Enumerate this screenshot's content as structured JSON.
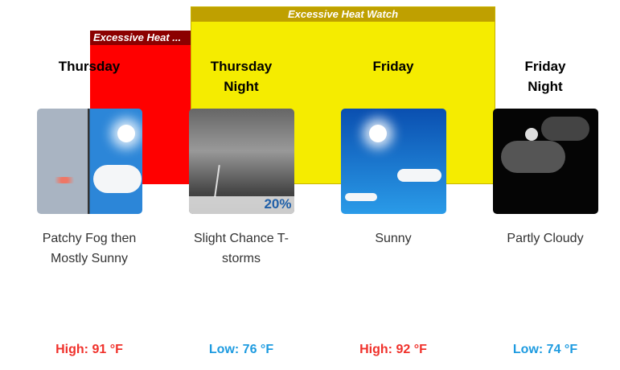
{
  "hazards": [
    {
      "label": "Excessive Heat ...",
      "color": "#ff0000"
    },
    {
      "label": "Excessive Heat Watch",
      "color": "#f5ec00"
    }
  ],
  "periods": [
    {
      "name": "Thursday",
      "icon": "patchy-fog-then-mostly-sunny-icon",
      "pop": "",
      "description": "Patchy Fog then Mostly Sunny",
      "temp": "High: 91 °F",
      "type": "high"
    },
    {
      "name": "Thursday Night",
      "icon": "slight-chance-tstorms-icon",
      "pop": "20%",
      "description": "Slight Chance T-storms",
      "temp": "Low: 76 °F",
      "type": "low"
    },
    {
      "name": "Friday",
      "icon": "sunny-icon",
      "pop": "",
      "description": "Sunny",
      "temp": "High: 92 °F",
      "type": "high"
    },
    {
      "name": "Friday Night",
      "icon": "partly-cloudy-night-icon",
      "pop": "",
      "description": "Partly Cloudy",
      "temp": "Low: 74 °F",
      "type": "low"
    }
  ]
}
